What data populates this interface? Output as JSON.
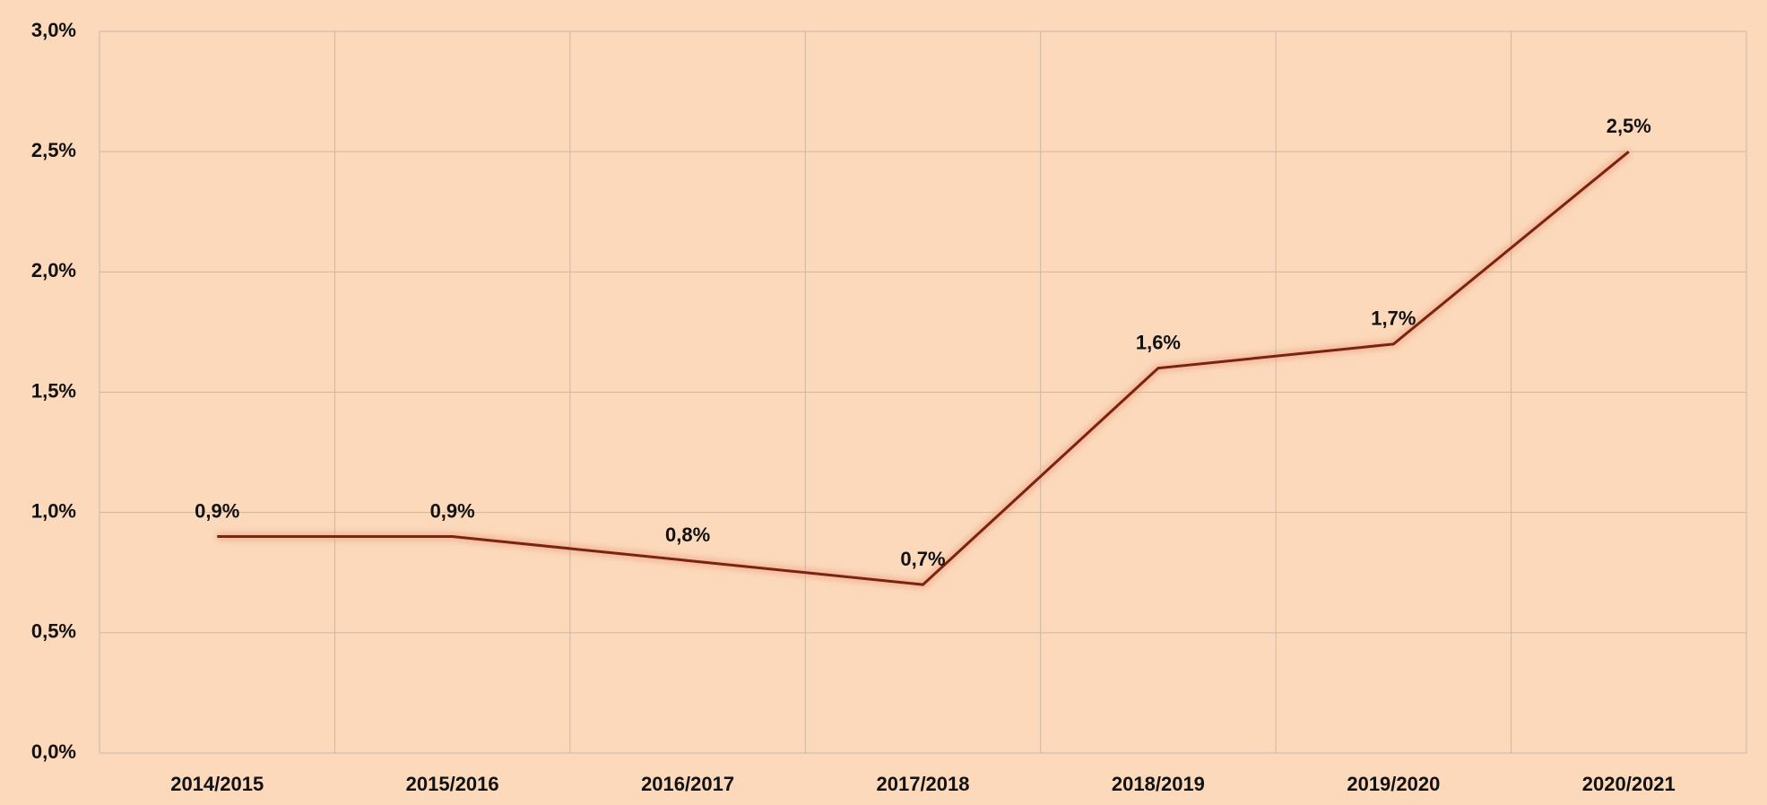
{
  "chart_data": {
    "type": "line",
    "categories": [
      "2014/2015",
      "2015/2016",
      "2016/2017",
      "2017/2018",
      "2018/2019",
      "2019/2020",
      "2020/2021"
    ],
    "series": [
      {
        "color": "#7a2410",
        "values": [
          0.9,
          0.9,
          0.8,
          0.7,
          1.6,
          1.7,
          2.5
        ],
        "value_labels": [
          "0,9%",
          "0,9%",
          "0,8%",
          "0,7%",
          "1,6%",
          "1,7%",
          "2,5%"
        ]
      }
    ],
    "ylim": [
      0,
      3
    ],
    "yticks": [
      {
        "value": 0,
        "label": "0,0%"
      },
      {
        "value": 0.5,
        "label": "0,5%"
      },
      {
        "value": 1,
        "label": "1,0%"
      },
      {
        "value": 1.5,
        "label": "1,5%"
      },
      {
        "value": 2,
        "label": "2,0%"
      },
      {
        "value": 2.5,
        "label": "2,5%"
      },
      {
        "value": 3,
        "label": "3,0%"
      }
    ],
    "grid": true
  }
}
